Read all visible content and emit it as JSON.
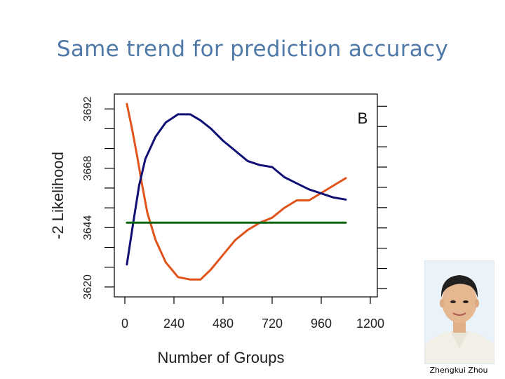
{
  "slide": {
    "title": "Same trend for prediction accuracy",
    "caption": "Zhengkui Zhou"
  },
  "chart_data": {
    "type": "line",
    "panel_label": "B",
    "xlabel": "Number of Groups",
    "ylabel_left": "-2 Likelihood",
    "ylabel_right": "",
    "xlim": [
      0,
      1200
    ],
    "ylim_left": [
      3616,
      3698
    ],
    "ylim_right": [
      0.696,
      0.796
    ],
    "x_ticks": [
      0,
      240,
      480,
      720,
      960,
      1200
    ],
    "y_left_ticks": [
      3620,
      3644,
      3668,
      3692
    ],
    "y_right_ticks": [
      0.7,
      0.73,
      0.76,
      0.79
    ],
    "grid": false,
    "series": [
      {
        "color": "#e0541b",
        "axis": "left",
        "x": [
          10,
          35,
          60,
          85,
          110,
          150,
          200,
          260,
          320,
          370,
          420,
          480,
          540,
          600,
          660,
          720,
          780,
          840,
          900,
          960,
          1020,
          1080
        ],
        "y": [
          3694,
          3684,
          3673,
          3661,
          3650,
          3639,
          3630,
          3624,
          3623,
          3623,
          3627,
          3633,
          3639,
          3643,
          3646,
          3648,
          3652,
          3655,
          3655,
          3658,
          3661,
          3664
        ]
      },
      {
        "color": "#101075",
        "axis": "right",
        "x": [
          10,
          40,
          70,
          100,
          150,
          200,
          260,
          320,
          370,
          420,
          480,
          540,
          600,
          660,
          720,
          780,
          840,
          900,
          960,
          1020,
          1080
        ],
        "y": [
          0.712,
          0.732,
          0.751,
          0.764,
          0.775,
          0.782,
          0.786,
          0.786,
          0.783,
          0.779,
          0.773,
          0.768,
          0.763,
          0.761,
          0.76,
          0.755,
          0.752,
          0.749,
          0.747,
          0.745,
          0.744
        ]
      },
      {
        "color": "#0c6510",
        "axis": "left",
        "x": [
          10,
          1080
        ],
        "y": [
          3646,
          3646
        ]
      }
    ]
  }
}
